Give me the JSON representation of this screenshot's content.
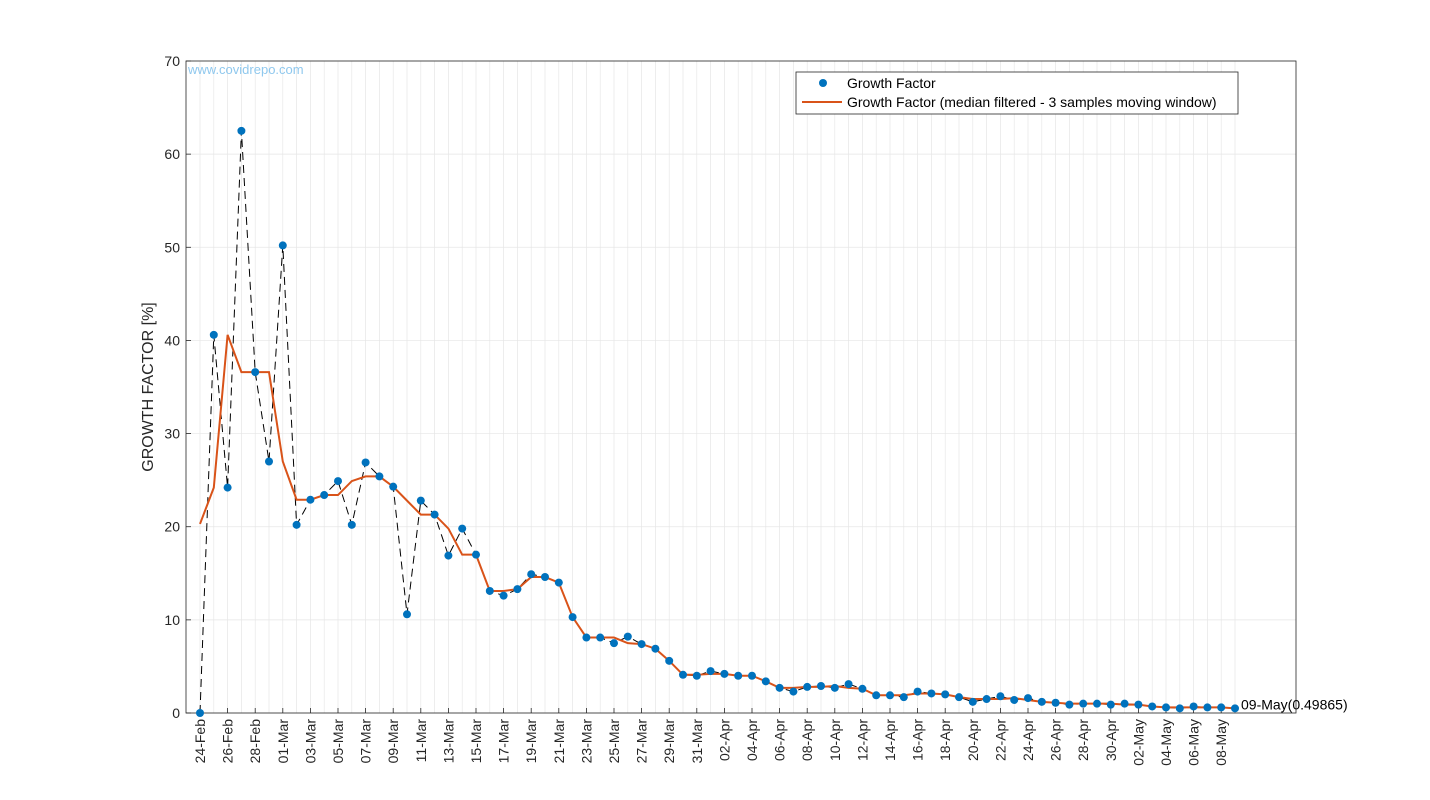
{
  "watermark": "www.covidrepo.com",
  "chart_data": {
    "type": "line",
    "ylabel": "GROWTH FACTOR [%]",
    "xlabel": "",
    "title": "",
    "ylim": [
      0,
      70
    ],
    "yticks": [
      0,
      10,
      20,
      30,
      40,
      50,
      60,
      70
    ],
    "x_dates": [
      "24-Feb",
      "25-Feb",
      "26-Feb",
      "27-Feb",
      "28-Feb",
      "29-Feb",
      "01-Mar",
      "02-Mar",
      "03-Mar",
      "04-Mar",
      "05-Mar",
      "06-Mar",
      "07-Mar",
      "08-Mar",
      "09-Mar",
      "10-Mar",
      "11-Mar",
      "12-Mar",
      "13-Mar",
      "14-Mar",
      "15-Mar",
      "16-Mar",
      "17-Mar",
      "18-Mar",
      "19-Mar",
      "20-Mar",
      "21-Mar",
      "22-Mar",
      "23-Mar",
      "24-Mar",
      "25-Mar",
      "26-Mar",
      "27-Mar",
      "28-Mar",
      "29-Mar",
      "30-Mar",
      "31-Mar",
      "01-Apr",
      "02-Apr",
      "03-Apr",
      "04-Apr",
      "05-Apr",
      "06-Apr",
      "07-Apr",
      "08-Apr",
      "09-Apr",
      "10-Apr",
      "11-Apr",
      "12-Apr",
      "13-Apr",
      "14-Apr",
      "15-Apr",
      "16-Apr",
      "17-Apr",
      "18-Apr",
      "19-Apr",
      "20-Apr",
      "21-Apr",
      "22-Apr",
      "23-Apr",
      "24-Apr",
      "25-Apr",
      "26-Apr",
      "27-Apr",
      "28-Apr",
      "29-Apr",
      "30-Apr",
      "01-May",
      "02-May",
      "03-May",
      "04-May",
      "05-May",
      "06-May",
      "07-May",
      "08-May",
      "09-May"
    ],
    "tick_labels": [
      "24-Feb",
      "26-Feb",
      "28-Feb",
      "01-Mar",
      "03-Mar",
      "05-Mar",
      "07-Mar",
      "09-Mar",
      "11-Mar",
      "13-Mar",
      "15-Mar",
      "17-Mar",
      "19-Mar",
      "21-Mar",
      "23-Mar",
      "25-Mar",
      "27-Mar",
      "29-Mar",
      "31-Mar",
      "02-Apr",
      "04-Apr",
      "06-Apr",
      "08-Apr",
      "10-Apr",
      "12-Apr",
      "14-Apr",
      "16-Apr",
      "18-Apr",
      "20-Apr",
      "22-Apr",
      "24-Apr",
      "26-Apr",
      "28-Apr",
      "30-Apr",
      "02-May",
      "04-May",
      "06-May",
      "08-May"
    ],
    "grid": true,
    "legend_position": "top-right",
    "series": [
      {
        "name": "Growth Factor",
        "style": "markers with dashed black connector",
        "color": "#0072BD",
        "connector_color": "#000000",
        "values": [
          0,
          40.6,
          24.2,
          62.5,
          36.6,
          27.0,
          50.2,
          20.2,
          22.9,
          23.4,
          24.9,
          20.2,
          26.9,
          25.4,
          24.3,
          10.6,
          22.8,
          21.3,
          16.9,
          19.8,
          17.0,
          13.1,
          12.6,
          13.3,
          14.9,
          14.6,
          14.0,
          10.3,
          8.1,
          8.1,
          7.5,
          8.2,
          7.4,
          6.9,
          5.6,
          4.1,
          4.0,
          4.5,
          4.2,
          4.0,
          4.0,
          3.4,
          2.7,
          2.3,
          2.8,
          2.9,
          2.7,
          3.1,
          2.6,
          1.9,
          1.9,
          1.7,
          2.3,
          2.1,
          2.0,
          1.7,
          1.2,
          1.5,
          1.8,
          1.4,
          1.6,
          1.2,
          1.1,
          0.9,
          1.0,
          1.0,
          0.9,
          1.0,
          0.9,
          0.7,
          0.6,
          0.5,
          0.7,
          0.6,
          0.6,
          0.49865
        ]
      },
      {
        "name": "Growth Factor (median filtered - 3 samples moving window)",
        "style": "solid line",
        "color": "#D95319",
        "values": [
          20.3,
          24.2,
          40.6,
          36.6,
          36.6,
          36.6,
          27.0,
          22.9,
          22.9,
          23.4,
          23.4,
          24.9,
          25.4,
          25.4,
          24.3,
          22.8,
          21.3,
          21.3,
          19.8,
          17.0,
          17.0,
          13.1,
          13.1,
          13.3,
          14.6,
          14.6,
          14.0,
          10.3,
          8.1,
          8.1,
          8.1,
          7.5,
          7.4,
          6.9,
          5.6,
          4.1,
          4.1,
          4.2,
          4.2,
          4.0,
          4.0,
          3.4,
          2.7,
          2.7,
          2.8,
          2.8,
          2.9,
          2.7,
          2.6,
          1.9,
          1.9,
          1.9,
          2.1,
          2.1,
          2.0,
          1.7,
          1.5,
          1.5,
          1.5,
          1.6,
          1.4,
          1.2,
          1.1,
          1.0,
          1.0,
          1.0,
          1.0,
          0.9,
          0.9,
          0.7,
          0.6,
          0.6,
          0.6,
          0.6,
          0.6,
          0.5
        ]
      }
    ],
    "annotations": [
      {
        "text": "09-May(0.49865)",
        "x": "09-May",
        "y": 0.49865
      }
    ]
  }
}
